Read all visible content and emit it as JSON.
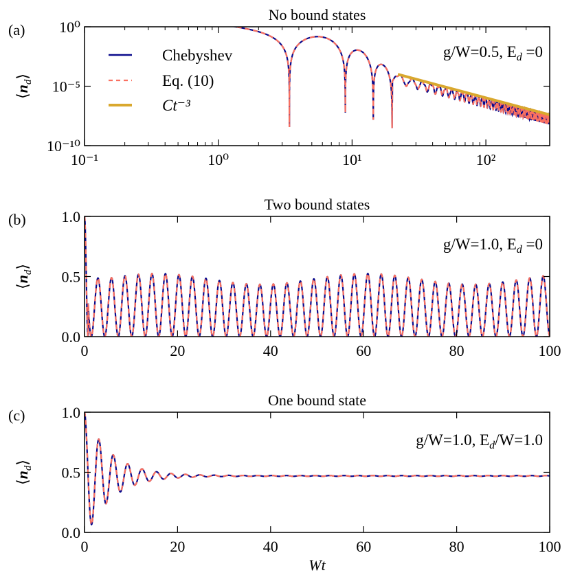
{
  "chart_data": [
    {
      "panel_label": "(a)",
      "type": "line",
      "title": "No bound states",
      "xscale": "log",
      "yscale": "log",
      "xlim": [
        0.1,
        300
      ],
      "ylim": [
        1e-10,
        1
      ],
      "ylabel": "⟨n_d⟩",
      "x_tick_labels": [
        "10⁻¹",
        "10⁰",
        "10¹",
        "10²"
      ],
      "x_ticks": [
        0.1,
        1,
        10,
        100
      ],
      "y_tick_labels": [
        "10⁰",
        "10⁻⁵",
        "10⁻¹⁰"
      ],
      "y_ticks": [
        1,
        1e-05,
        1e-10
      ],
      "annotation": {
        "prefix": "g/W=0.5, E",
        "sub": "d",
        "suffix": " =0"
      },
      "legend": {
        "placement": "upper-left",
        "entries": [
          "Chebyshev",
          "Eq. (10)",
          "Ct⁻³"
        ]
      },
      "series": [
        {
          "name": "Chebyshev",
          "style": "solid",
          "color": "#0a0a8c",
          "dips_at": [
            3.4,
            8.2,
            14,
            20.5
          ],
          "peaks": [
            {
              "x": 5.5,
              "y": 0.1
            },
            {
              "x": 10.5,
              "y": 0.016
            },
            {
              "x": 17,
              "y": 0.0013
            }
          ]
        },
        {
          "name": "Eq. (10)",
          "style": "dashed",
          "color": "#fa7060"
        },
        {
          "name": "Ct⁻³",
          "style": "solid-thick",
          "color": "#d9a82e",
          "x_range": [
            22,
            300
          ],
          "C": 1.06,
          "exponent": -3
        }
      ]
    },
    {
      "panel_label": "(b)",
      "type": "line",
      "title": "Two bound states",
      "xlim": [
        0,
        100
      ],
      "ylim": [
        0,
        1
      ],
      "ylabel": "⟨n_d⟩",
      "x_tick_labels": [
        "0",
        "20",
        "40",
        "60",
        "80",
        "100"
      ],
      "x_ticks": [
        0,
        20,
        40,
        60,
        80,
        100
      ],
      "y_tick_labels": [
        "0.0",
        "0.5",
        "1.0"
      ],
      "y_ticks": [
        0,
        0.5,
        1
      ],
      "annotation": {
        "prefix": "g/W=1.0, E",
        "sub": "d",
        "suffix": " =0"
      },
      "series": [
        {
          "name": "Chebyshev",
          "style": "solid",
          "color": "#0a0a8c",
          "start": 1.0,
          "period": 2.9,
          "min": 0.0,
          "peak_max_range": [
            0.44,
            0.53
          ]
        },
        {
          "name": "Eq. (10)",
          "style": "dashed",
          "color": "#fa7060"
        }
      ]
    },
    {
      "panel_label": "(c)",
      "type": "line",
      "title": "One bound state",
      "xlim": [
        0,
        100
      ],
      "ylim": [
        0,
        1
      ],
      "xlabel": "Wt",
      "ylabel": "⟨n_d⟩",
      "x_tick_labels": [
        "0",
        "20",
        "40",
        "60",
        "80",
        "100"
      ],
      "x_ticks": [
        0,
        20,
        40,
        60,
        80,
        100
      ],
      "y_tick_labels": [
        "0.0",
        "0.5",
        "1.0"
      ],
      "y_ticks": [
        0,
        0.5,
        1
      ],
      "annotation": {
        "prefix": "g/W=1.0, E",
        "sub": "d",
        "suffix": "/W=1.0"
      },
      "series": [
        {
          "name": "Chebyshev",
          "style": "solid",
          "color": "#0a0a8c",
          "start": 1.0,
          "first_min": 0.2,
          "steady_state": 0.47,
          "period": 3.1
        },
        {
          "name": "Eq. (10)",
          "style": "dashed",
          "color": "#fa7060"
        }
      ]
    }
  ]
}
